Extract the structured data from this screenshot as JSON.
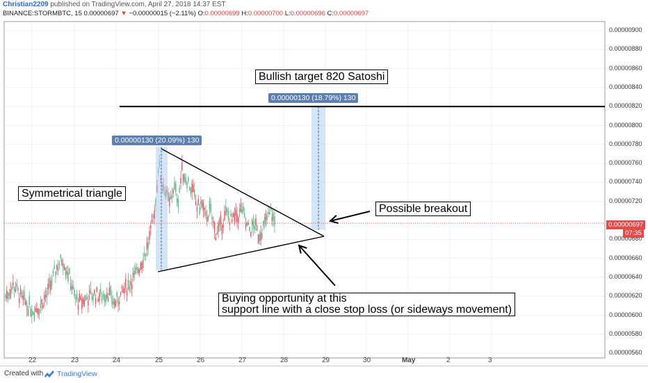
{
  "header": {
    "author": "Christian2209",
    "published": "published on TradingView.com, April 27, 2018 14:37 EST",
    "symbol": "BINANCE:STORMBTC, 15",
    "last": "0.00000697",
    "change_arrow": "▼",
    "change": "−0.00000015 (−2.11%)",
    "o_label": "O:",
    "o_val": "0.00000699",
    "h_label": "H:",
    "h_val": "0.00000700",
    "l_label": "L:",
    "l_val": "0.00000696",
    "c_label": "C:",
    "c_val": "0.00000697"
  },
  "annotations": {
    "bullish_target": "Bullish target 820 Satoshi",
    "triangle": "Symmetrical triangle",
    "breakout": "Possible breakout",
    "buying_line1": "Buying opportunity at this",
    "buying_line2": "support line with a close stop loss (or sideways movement)"
  },
  "measure_tags": {
    "left": "0.00000130 (20.09%) 130",
    "right": "0.00000130 (18.79%) 130"
  },
  "price_tag": {
    "price": "0.00000697",
    "timer": "07:35"
  },
  "chart_data": {
    "type": "candlestick",
    "y_ticks": [
      "0.00000900",
      "0.00000880",
      "0.00000860",
      "0.00000840",
      "0.00000820",
      "0.00000800",
      "0.00000780",
      "0.00000760",
      "0.00000740",
      "0.00000720",
      "0.00000680",
      "0.00000660",
      "0.00000640",
      "0.00000620",
      "0.00000600",
      "0.00000580",
      "0.00000560"
    ],
    "x_ticks": [
      "22",
      "23",
      "24",
      "25",
      "26",
      "27",
      "28",
      "29",
      "30",
      "May",
      "2",
      "3"
    ],
    "ylim": [
      5.6e-06,
      9.05e-06
    ],
    "target_line": 8.2e-06,
    "current_price": 6.97e-06,
    "colors": {
      "up": "#53b987",
      "down": "#eb4d5c",
      "accent": "#5a7fb0",
      "price": "#e34a4a"
    }
  },
  "footer": {
    "created": "Created with",
    "brand": "TradingView"
  }
}
